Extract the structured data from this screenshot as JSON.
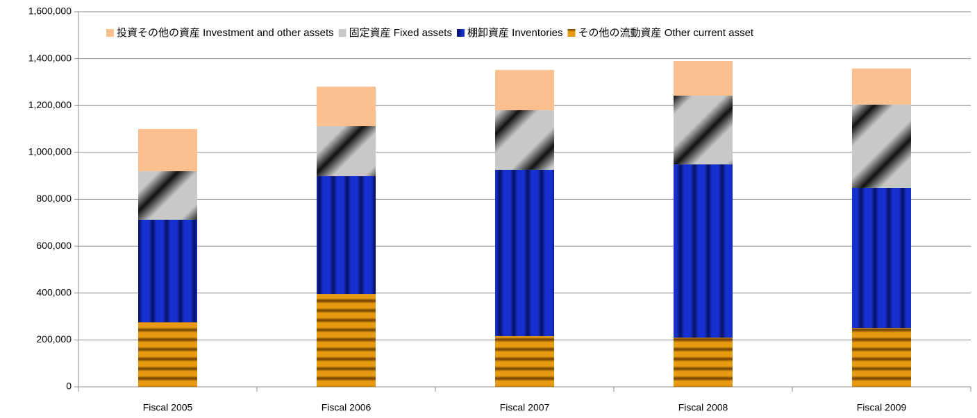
{
  "chart_data": {
    "type": "stacked_bar",
    "categories": [
      "Fiscal 2005",
      "Fiscal 2006",
      "Fiscal 2007",
      "Fiscal 2008",
      "Fiscal 2009"
    ],
    "series": [
      {
        "name": "投資その他の資産 Investment and other assets",
        "color": "#fac090",
        "values": [
          180000,
          169000,
          172000,
          148000,
          154000
        ]
      },
      {
        "name": "固定資産 Fixed assets",
        "color": "#c8c8c8",
        "values": [
          207000,
          213000,
          254000,
          293000,
          355000
        ]
      },
      {
        "name": "棚卸資産 Inventories",
        "color": "#1530d0",
        "values": [
          438000,
          503000,
          710000,
          739000,
          598000
        ]
      },
      {
        "name": "その他の流動資産 Other current asset",
        "color": "#e89a10",
        "values": [
          275000,
          396000,
          216000,
          210000,
          251000
        ]
      }
    ],
    "ylim": [
      0,
      1600000
    ],
    "yticks": [
      0,
      {
        "value": 200000,
        "label": "200,000"
      },
      {
        "value": 400000,
        "label": "400,000"
      },
      {
        "value": 600000,
        "label": "600,000"
      },
      {
        "value": 800000,
        "label": "800,000"
      },
      {
        "value": 1000000,
        "label": "1,000,000"
      },
      {
        "value": 1200000,
        "label": "1,200,000"
      },
      {
        "value": 1400000,
        "label": "1,400,000"
      },
      {
        "value": 1600000,
        "label": "1,600,000"
      }
    ],
    "grid": true
  }
}
